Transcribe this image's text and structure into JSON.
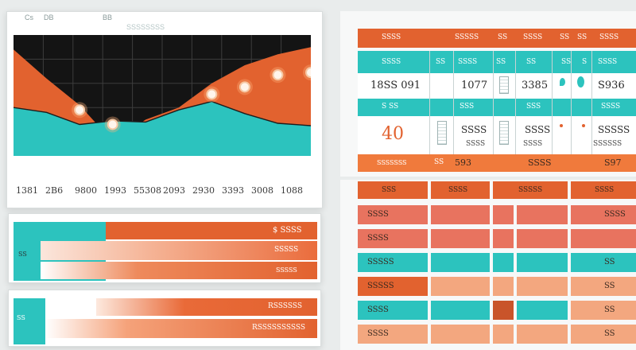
{
  "colors": {
    "orange": "#e2622f",
    "teal": "#2cc3be",
    "black": "#141414",
    "coral": "#e8735f",
    "peach": "#f3a77f",
    "background": "#e9ecec"
  },
  "left_panel": {
    "tab_a": "Cs",
    "tab_b": "DB",
    "tab_c": "BB",
    "header_text": "SSSSSSSS"
  },
  "chart_data": {
    "type": "area",
    "x": [
      "1381",
      "2B6",
      "9800",
      "1993",
      "55308",
      "2093",
      "2930",
      "3393",
      "3008",
      "1088"
    ],
    "series": [
      {
        "values": [
          8.8,
          6.4,
          4.2,
          1.2,
          3.0,
          4.0,
          6.0,
          7.5,
          8.4,
          9.0
        ]
      },
      {
        "values": [
          4.0,
          3.6,
          2.6,
          2.9,
          2.8,
          3.8,
          4.5,
          3.5,
          2.7,
          2.5
        ]
      }
    ],
    "highlighted_points": [
      {
        "x": "9800",
        "y": 3.8
      },
      {
        "x": "1993",
        "y": 2.6
      },
      {
        "x": "2930",
        "y": 5.1
      },
      {
        "x": "3393",
        "y": 5.7
      },
      {
        "x": "3008",
        "y": 6.7
      },
      {
        "x": "1088",
        "y": 6.9
      }
    ],
    "ylim": [
      0,
      10
    ],
    "grid": true,
    "xlabel": "",
    "ylabel": "",
    "title": ""
  },
  "bars_top": {
    "value_label": "$ SSSS",
    "row_label": "SS",
    "sub_label": "SSSSS"
  },
  "bars_bottom": {
    "row_label": "SS",
    "value_label": "RSSSSSS",
    "sub_label": "RSSSSSSSSSS"
  },
  "top_table": {
    "header": [
      "SSSS",
      "SSSSS",
      "SS",
      "SSSS",
      "SS",
      "SS",
      "SSSS"
    ],
    "row1": [
      "SSSS",
      "SS",
      "SSSS",
      "SS",
      "SS",
      "SS",
      "S",
      "SSSS"
    ],
    "row2": [
      "18SS 091",
      "1077",
      "3385",
      "S936"
    ],
    "row3": [
      "S SS",
      "SSS",
      "SSS",
      "SSSS"
    ],
    "row4": [
      "40",
      "SSSS",
      "SSSS",
      "SSSSS"
    ],
    "row5": [
      "SSSS",
      "SS",
      "SSSS",
      "SSSS",
      "SSSSSS"
    ],
    "footer": [
      "SSSSSSS",
      "SS",
      "593",
      "SSSS",
      "S97"
    ]
  },
  "grid_table": {
    "header": [
      "SSS",
      "SSSS",
      "SSSSS",
      "SSSS"
    ],
    "rows": [
      [
        "SSSS",
        "SSSS"
      ],
      [
        "SSSS",
        ""
      ],
      [
        "SSSSS",
        "SS"
      ],
      [
        "SSSSS",
        "SS"
      ],
      [
        "SSSS",
        "SS"
      ],
      [
        "SSSS",
        "SS"
      ]
    ]
  }
}
